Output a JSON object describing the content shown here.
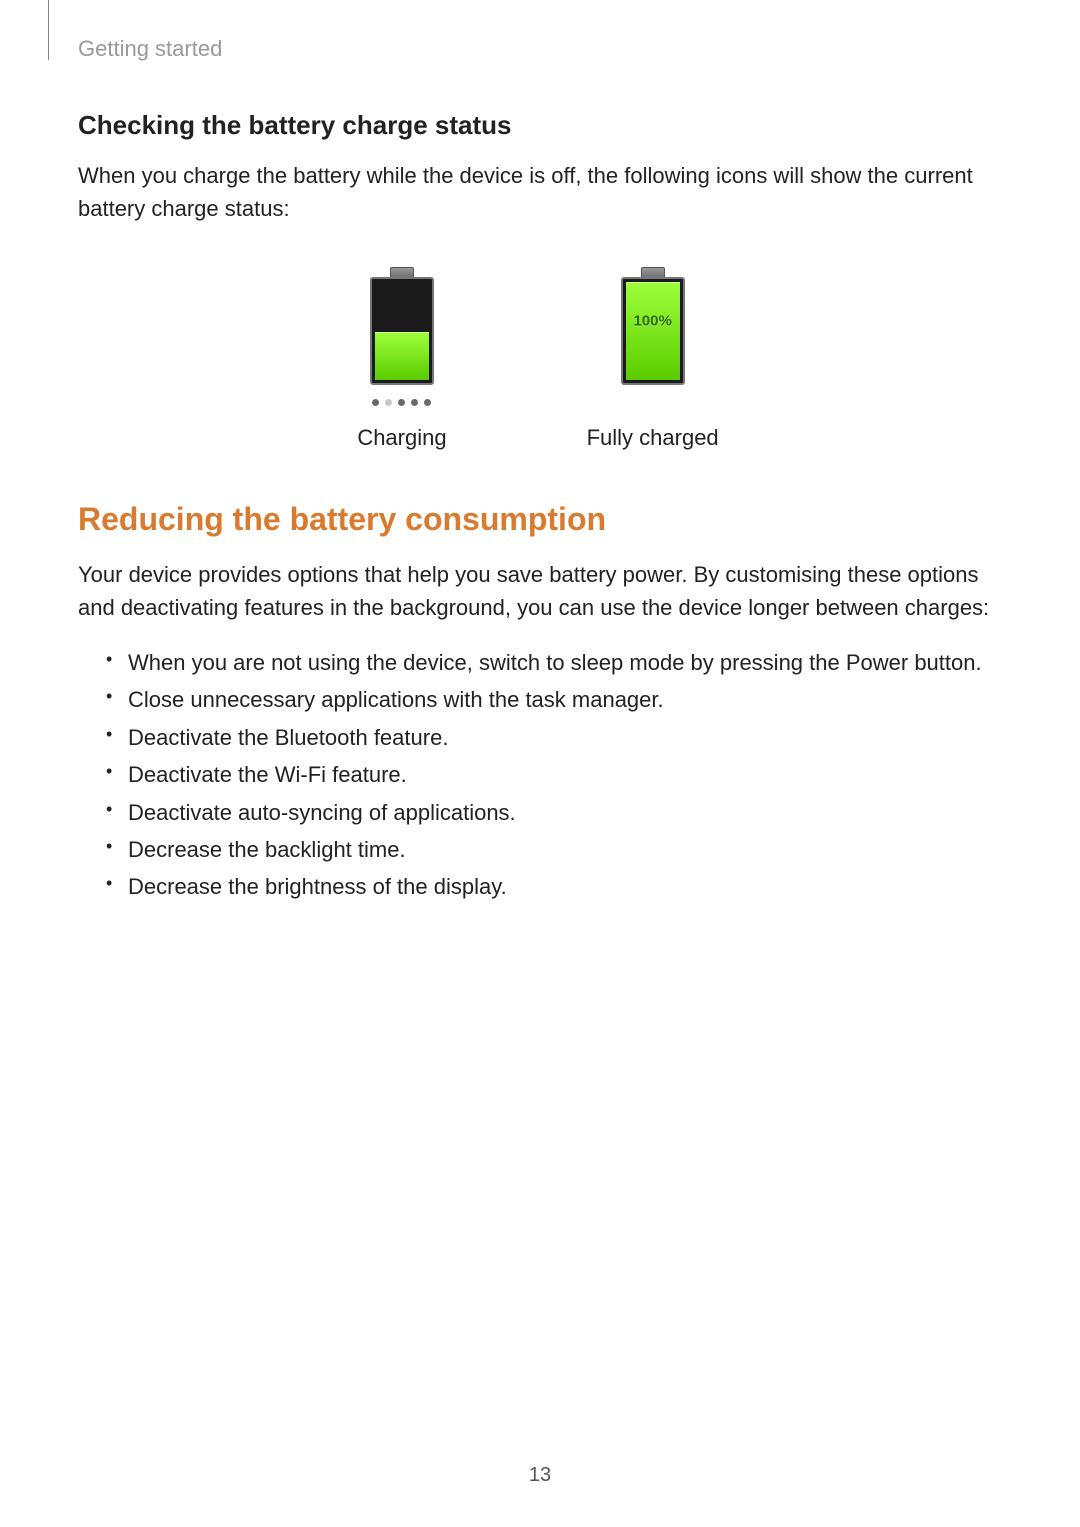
{
  "breadcrumb": "Getting started",
  "subheading": "Checking the battery charge status",
  "intro_text": "When you charge the battery while the device is off, the following icons will show the current battery charge status:",
  "battery": {
    "charging": {
      "label": "Charging",
      "fill_percent": 45,
      "fill_color_top": "#9dff3c",
      "fill_color_bottom": "#5bcc00",
      "dots_pattern": [
        "dark",
        "light",
        "dark",
        "dark",
        "dark"
      ]
    },
    "full": {
      "label": "Fully charged",
      "pct_text": "100%",
      "fill_percent": 100,
      "fill_color_top": "#9dff3c",
      "fill_color_bottom": "#5bcc00"
    },
    "body_color": "#1a1a1a",
    "border_color": "#777777",
    "cap_color": "#808080"
  },
  "section_heading": "Reducing the battery consumption",
  "section_heading_color": "#d97a2e",
  "section_text": "Your device provides options that help you save battery power. By customising these options and deactivating features in the background, you can use the device longer between charges:",
  "tips": [
    "When you are not using the device, switch to sleep mode by pressing the Power button.",
    "Close unnecessary applications with the task manager.",
    "Deactivate the Bluetooth feature.",
    "Deactivate the Wi-Fi feature.",
    "Deactivate auto-syncing of applications.",
    "Decrease the backlight time.",
    "Decrease the brightness of the display."
  ],
  "page_number": "13",
  "colors": {
    "text": "#222222",
    "muted": "#999999",
    "background": "#ffffff"
  },
  "typography": {
    "body_fontsize": 22,
    "subheading_fontsize": 26,
    "section_heading_fontsize": 32
  }
}
